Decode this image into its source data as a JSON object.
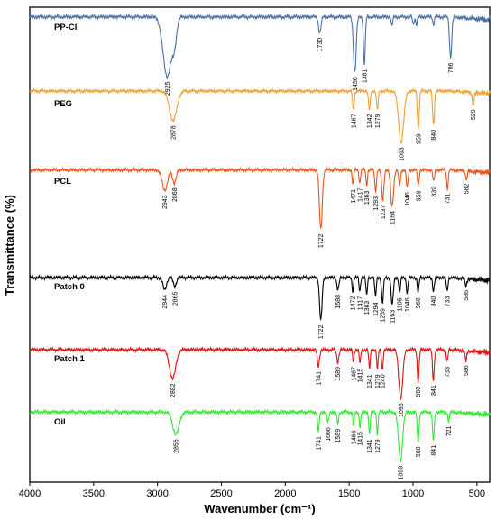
{
  "chart_data": {
    "type": "line",
    "xlabel": "Wavenumber (cm⁻¹)",
    "ylabel": "Transmittance (%)",
    "x_reversed": true,
    "xlim": [
      4000,
      400
    ],
    "xticks": [
      "4000",
      "3500",
      "3000",
      "2500",
      "2000",
      "1500",
      "1000",
      "500"
    ],
    "grid": false,
    "colors": {
      "PP-Cl": "#4a6fa5",
      "PEG": "#f0a030",
      "PCL": "#e8541c",
      "Patch 0": "#000000",
      "Patch 1": "#e11010",
      "Oil": "#2ee82e"
    },
    "series": [
      {
        "name": "PP-Cl",
        "baseline": 0.2,
        "peaks": [
          {
            "x": 2925,
            "d": 7.6,
            "w": 45
          },
          {
            "x": 2868,
            "d": 3.0,
            "w": 25
          },
          {
            "x": 1730,
            "d": 2.0,
            "w": 14
          },
          {
            "x": 1456,
            "d": 7.0,
            "w": 15
          },
          {
            "x": 1381,
            "d": 6.0,
            "w": 10
          },
          {
            "x": 1165,
            "d": 1.2,
            "w": 8
          },
          {
            "x": 997,
            "d": 1.0,
            "w": 8
          },
          {
            "x": 973,
            "d": 1.0,
            "w": 8
          },
          {
            "x": 840,
            "d": 1.0,
            "w": 8
          },
          {
            "x": 706,
            "d": 5.2,
            "w": 12
          }
        ],
        "labels": [
          "2925",
          "1730",
          "1456",
          "1381",
          "706"
        ]
      },
      {
        "name": "PEG",
        "baseline": 0,
        "peaks": [
          {
            "x": 2878,
            "d": 4.4,
            "w": 40
          },
          {
            "x": 1467,
            "d": 2.7,
            "w": 10
          },
          {
            "x": 1342,
            "d": 2.7,
            "w": 10
          },
          {
            "x": 1279,
            "d": 2.7,
            "w": 10
          },
          {
            "x": 1093,
            "d": 7.6,
            "w": 28
          },
          {
            "x": 959,
            "d": 5.6,
            "w": 10
          },
          {
            "x": 840,
            "d": 5.0,
            "w": 10
          },
          {
            "x": 529,
            "d": 2.0,
            "w": 10
          }
        ],
        "labels": [
          "2878",
          "1467",
          "1342",
          "1279",
          "1093",
          "959",
          "840",
          "529"
        ]
      },
      {
        "name": "PCL",
        "baseline": 0.2,
        "peaks": [
          {
            "x": 2943,
            "d": 2.8,
            "w": 30
          },
          {
            "x": 2868,
            "d": 1.8,
            "w": 20
          },
          {
            "x": 1722,
            "d": 8.2,
            "w": 16
          },
          {
            "x": 1471,
            "d": 2.0,
            "w": 8
          },
          {
            "x": 1417,
            "d": 1.8,
            "w": 8
          },
          {
            "x": 1363,
            "d": 2.2,
            "w": 8
          },
          {
            "x": 1293,
            "d": 3.0,
            "w": 9
          },
          {
            "x": 1237,
            "d": 4.2,
            "w": 12
          },
          {
            "x": 1164,
            "d": 5.0,
            "w": 16
          },
          {
            "x": 1105,
            "d": 2.2,
            "w": 10
          },
          {
            "x": 1046,
            "d": 2.4,
            "w": 10
          },
          {
            "x": 959,
            "d": 2.2,
            "w": 9
          },
          {
            "x": 839,
            "d": 1.6,
            "w": 9
          },
          {
            "x": 731,
            "d": 2.6,
            "w": 9
          },
          {
            "x": 582,
            "d": 1.2,
            "w": 9
          }
        ],
        "labels": [
          "2943",
          "2868",
          "1722",
          "1471",
          "1417",
          "1363",
          "1293",
          "1237",
          "1164",
          "1046",
          "959",
          "839",
          "731",
          "582"
        ]
      },
      {
        "name": "Patch 0",
        "baseline": 0.6,
        "peaks": [
          {
            "x": 2944,
            "d": 1.6,
            "w": 20
          },
          {
            "x": 2865,
            "d": 1.2,
            "w": 16
          },
          {
            "x": 1722,
            "d": 5.6,
            "w": 14
          },
          {
            "x": 1588,
            "d": 1.6,
            "w": 12
          },
          {
            "x": 1472,
            "d": 1.8,
            "w": 8
          },
          {
            "x": 1417,
            "d": 1.8,
            "w": 8
          },
          {
            "x": 1363,
            "d": 2.4,
            "w": 8
          },
          {
            "x": 1294,
            "d": 2.6,
            "w": 8
          },
          {
            "x": 1239,
            "d": 3.4,
            "w": 10
          },
          {
            "x": 1163,
            "d": 3.6,
            "w": 12
          },
          {
            "x": 1105,
            "d": 2.0,
            "w": 9
          },
          {
            "x": 1046,
            "d": 2.0,
            "w": 9
          },
          {
            "x": 960,
            "d": 2.0,
            "w": 9
          },
          {
            "x": 840,
            "d": 1.8,
            "w": 9
          },
          {
            "x": 733,
            "d": 1.8,
            "w": 9
          },
          {
            "x": 586,
            "d": 1.0,
            "w": 9
          }
        ],
        "labels": [
          "2944",
          "2865",
          "1722",
          "1588",
          "1472",
          "1417",
          "1363",
          "1294",
          "1239",
          "1163",
          "1105",
          "1046",
          "960",
          "840",
          "733",
          "586"
        ]
      },
      {
        "name": "Patch 1",
        "baseline": 0.6,
        "peaks": [
          {
            "x": 2882,
            "d": 3.8,
            "w": 35
          },
          {
            "x": 1741,
            "d": 2.2,
            "w": 12
          },
          {
            "x": 1589,
            "d": 1.6,
            "w": 12
          },
          {
            "x": 1467,
            "d": 1.6,
            "w": 8
          },
          {
            "x": 1415,
            "d": 1.8,
            "w": 8
          },
          {
            "x": 1341,
            "d": 2.6,
            "w": 8
          },
          {
            "x": 1279,
            "d": 2.6,
            "w": 8
          },
          {
            "x": 1240,
            "d": 2.6,
            "w": 9
          },
          {
            "x": 1096,
            "d": 6.4,
            "w": 22
          },
          {
            "x": 960,
            "d": 4.2,
            "w": 10
          },
          {
            "x": 841,
            "d": 4.0,
            "w": 10
          },
          {
            "x": 733,
            "d": 1.6,
            "w": 9
          },
          {
            "x": 586,
            "d": 1.4,
            "w": 9
          }
        ],
        "labels": [
          "2882",
          "1741",
          "1589",
          "1467",
          "1415",
          "1341",
          "1279",
          "1240",
          "1096",
          "960",
          "841",
          "733",
          "586"
        ]
      },
      {
        "name": "Oil",
        "baseline": 0.4,
        "peaks": [
          {
            "x": 2856,
            "d": 3.0,
            "w": 35
          },
          {
            "x": 1741,
            "d": 2.6,
            "w": 10
          },
          {
            "x": 1666,
            "d": 1.4,
            "w": 10
          },
          {
            "x": 1589,
            "d": 1.6,
            "w": 10
          },
          {
            "x": 1466,
            "d": 1.8,
            "w": 8
          },
          {
            "x": 1415,
            "d": 2.0,
            "w": 8
          },
          {
            "x": 1341,
            "d": 3.0,
            "w": 8
          },
          {
            "x": 1279,
            "d": 3.0,
            "w": 8
          },
          {
            "x": 1098,
            "d": 6.6,
            "w": 22
          },
          {
            "x": 960,
            "d": 4.0,
            "w": 10
          },
          {
            "x": 841,
            "d": 3.8,
            "w": 10
          },
          {
            "x": 721,
            "d": 1.2,
            "w": 9
          }
        ],
        "labels": [
          "2856",
          "1741",
          "1666",
          "1589",
          "1466",
          "1415",
          "1341",
          "1279",
          "1098",
          "960",
          "841",
          "721"
        ]
      }
    ]
  }
}
